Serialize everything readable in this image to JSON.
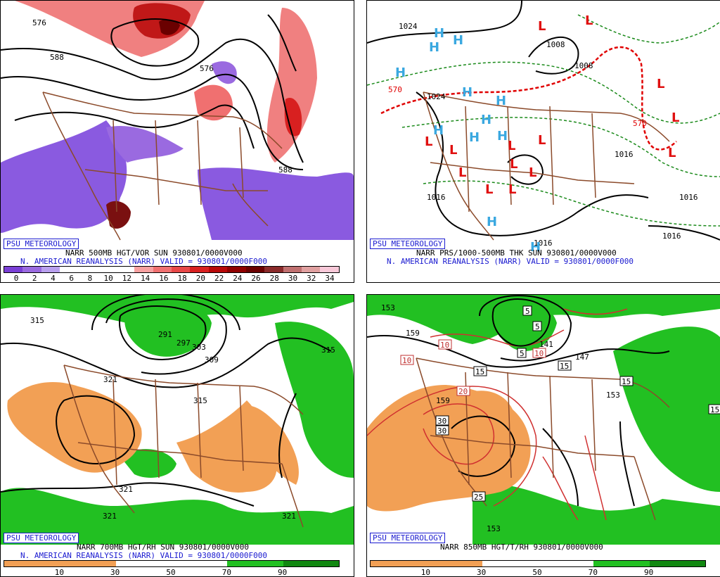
{
  "panels": [
    {
      "id": "p500",
      "badge": "PSU METEOROLOGY",
      "caption_line1": "NARR 500MB HGT/VOR SUN 930801/0000V000",
      "caption_line2": "N. AMERICAN REANALYSIS (NARR) VALID = 930801/0000F000",
      "legend_ticks": [
        "0",
        "2",
        "4",
        "6",
        "8",
        "10",
        "12",
        "14",
        "16",
        "18",
        "20",
        "22",
        "24",
        "26",
        "28",
        "30",
        "32",
        "34"
      ],
      "legend_colors": [
        "#7a3fd6",
        "#9a6ae0",
        "#b9a0ee",
        "#ffffff",
        "#ffffff",
        "#ffffff",
        "#ffffff",
        "#f7a0a0",
        "#f07070",
        "#e84848",
        "#d82020",
        "#b80808",
        "#900000",
        "#6a0000",
        "#8a2a2a",
        "#c07070",
        "#e0a0a0",
        "#f8c8d8"
      ],
      "contour_labels": [
        "576",
        "588",
        "576",
        "588"
      ]
    },
    {
      "id": "pprs",
      "badge": "PSU METEOROLOGY",
      "caption_line1": "NARR PRS/1000-500MB THK SUN 930801/0000V000",
      "caption_line2": "N. AMERICAN REANALYSIS (NARR) VALID = 930801/0000F000",
      "contour_labels": [
        "1024",
        "1008",
        "1008",
        "570",
        "1024",
        "1016",
        "1016",
        "1016",
        "1016",
        "1016",
        "570"
      ],
      "high_label": "H",
      "low_label": "L"
    },
    {
      "id": "p700",
      "badge": "PSU METEOROLOGY",
      "caption_line1": "NARR 700MB HGT/RH SUN 930801/0000V000",
      "caption_line2": "N. AMERICAN REANALYSIS (NARR) VALID = 930801/0000F000",
      "legend_ticks": [
        "10",
        "30",
        "50",
        "70",
        "90"
      ],
      "legend_colors": [
        "#f2a055",
        "#f2a055",
        "#ffffff",
        "#ffffff",
        "#22c022",
        "#118811"
      ],
      "contour_labels": [
        "315",
        "291",
        "297",
        "303",
        "309",
        "321",
        "315",
        "321",
        "321",
        "321",
        "315"
      ]
    },
    {
      "id": "p850",
      "badge": "PSU METEOROLOGY",
      "caption_line1": "NARR 850MB HGT/T/RH 930801/0000V000",
      "legend_ticks": [
        "10",
        "30",
        "50",
        "70",
        "90"
      ],
      "legend_colors": [
        "#f2a055",
        "#f2a055",
        "#ffffff",
        "#ffffff",
        "#22c022",
        "#118811"
      ],
      "contour_labels": [
        "153",
        "159",
        "141",
        "147",
        "153",
        "159",
        "153"
      ],
      "box_labels": [
        "5",
        "5",
        "5",
        "10",
        "10",
        "10",
        "15",
        "15",
        "15",
        "20",
        "30",
        "30",
        "25",
        "15"
      ]
    }
  ]
}
